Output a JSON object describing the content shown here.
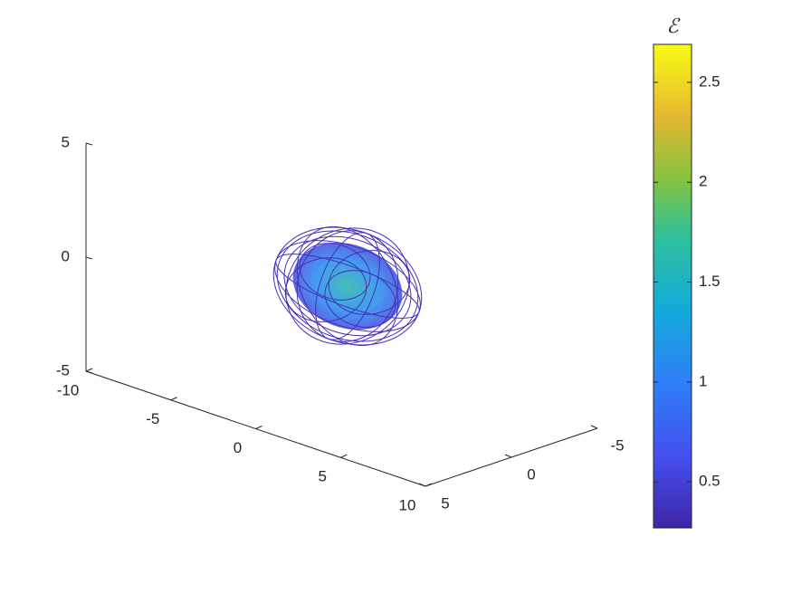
{
  "chart_data": {
    "type": "wireframe3d",
    "xlim": [
      -10,
      10
    ],
    "xticks": [
      -10,
      -5,
      0,
      5,
      10
    ],
    "ylim": [
      -5,
      5
    ],
    "yticks": [
      -5,
      0,
      5
    ],
    "zlim": [
      -5,
      5
    ],
    "zticks": [
      -5,
      0,
      5
    ],
    "colorbar": {
      "label": "ℰ",
      "lim": [
        0.27,
        2.69
      ],
      "ticks": [
        0.5,
        1,
        1.5,
        2,
        2.5
      ]
    }
  }
}
